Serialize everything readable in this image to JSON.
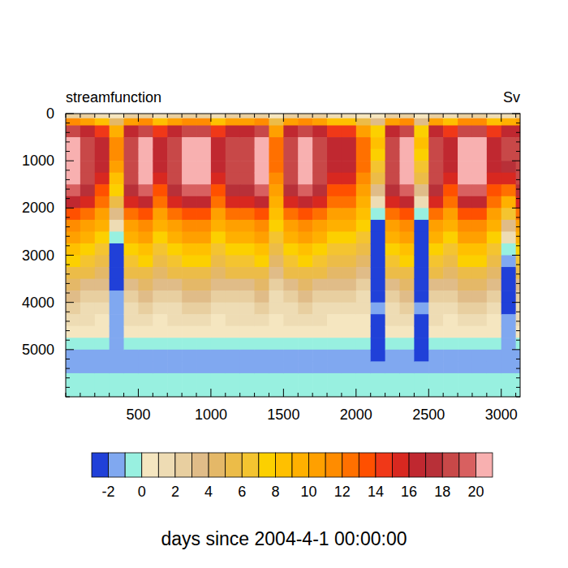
{
  "chart_data": {
    "type": "heatmap",
    "title": "streamfunction",
    "subtitle": "Sv",
    "x_label": "days since 2004-4-1 00:00:00",
    "xlim": [
      0,
      3130
    ],
    "ylim": [
      6000,
      0
    ],
    "xticks": [
      500,
      1000,
      1500,
      2000,
      2500,
      3000
    ],
    "yticks": [
      0,
      1000,
      2000,
      3000,
      4000,
      5000
    ],
    "x_bins": [
      0,
      100,
      200,
      300,
      400,
      500,
      600,
      700,
      800,
      900,
      1000,
      1100,
      1200,
      1300,
      1400,
      1500,
      1600,
      1700,
      1800,
      1900,
      2000,
      2100,
      2200,
      2300,
      2400,
      2500,
      2600,
      2700,
      2800,
      2900,
      3000,
      3100,
      3200
    ],
    "y_bins": [
      0,
      100,
      250,
      500,
      750,
      1000,
      1250,
      1500,
      1750,
      2000,
      2250,
      2500,
      2750,
      3000,
      3250,
      3500,
      3750,
      4000,
      4250,
      4500,
      4750,
      5000,
      5250,
      5500,
      6000
    ],
    "values": [
      [
        2,
        11,
        18,
        20.5,
        21,
        21,
        20.5,
        19,
        16.5,
        13.5,
        11.5,
        10,
        8.5,
        7,
        5.5,
        4.2,
        3.2,
        2.2,
        1.2,
        0.5,
        -0.3,
        -1.2,
        -1.3,
        -0.5
      ],
      [
        2,
        10,
        16,
        18,
        18.5,
        18.5,
        18,
        17,
        15,
        12.5,
        10.5,
        9,
        7.5,
        6.2,
        5,
        3.8,
        2.8,
        1.8,
        1,
        0.4,
        -0.4,
        -1.2,
        -1.3,
        -0.5
      ],
      [
        1,
        8,
        14,
        16,
        16.5,
        16,
        15,
        13.5,
        12,
        10.5,
        9,
        7.5,
        6.5,
        5.5,
        4.5,
        3.5,
        2.5,
        1.5,
        0.8,
        0.3,
        -0.5,
        -1.3,
        -1.4,
        -0.5
      ],
      [
        0.5,
        4,
        9,
        11,
        11,
        10,
        8.5,
        7,
        5,
        3,
        1,
        -1,
        -2.2,
        -2.5,
        -2.5,
        -2.2,
        -2,
        -1.8,
        -1.5,
        -1.2,
        -1.5,
        -1.8,
        -1.6,
        -0.5
      ],
      [
        2,
        10,
        16,
        18,
        18.5,
        18.5,
        18,
        17,
        15,
        12.5,
        10.5,
        9,
        7.5,
        6.2,
        5,
        3.8,
        2.8,
        1.8,
        1,
        0.4,
        -0.4,
        -1.2,
        -1.3,
        -0.5
      ],
      [
        2,
        11,
        18,
        20.5,
        21,
        21,
        20.5,
        19,
        16.5,
        13.5,
        11.5,
        10,
        8.5,
        7,
        5.5,
        4.2,
        3.2,
        2.2,
        1.2,
        0.5,
        -0.3,
        -1.2,
        -1.3,
        -0.5
      ],
      [
        1,
        8,
        14,
        16,
        16.5,
        16,
        15,
        13.5,
        12,
        10.5,
        9,
        7.5,
        6.5,
        5.5,
        4.5,
        3.5,
        2.5,
        1.5,
        0.8,
        0.3,
        -0.5,
        -1.3,
        -1.4,
        -0.5
      ],
      [
        2,
        10,
        16,
        18,
        18.5,
        18.5,
        18,
        17,
        15,
        12.5,
        10.5,
        9,
        7.5,
        6.2,
        5,
        3.8,
        2.8,
        1.8,
        1,
        0.4,
        -0.4,
        -1.2,
        -1.3,
        -0.5
      ],
      [
        2,
        11,
        18,
        20.5,
        21,
        21,
        20.5,
        19,
        16.5,
        13.5,
        11.5,
        10,
        8.5,
        7,
        5.5,
        4.2,
        3.2,
        2.2,
        1.2,
        0.5,
        -0.3,
        -1.2,
        -1.3,
        -0.5
      ],
      [
        2,
        11,
        18,
        20.5,
        21,
        21,
        20.5,
        19,
        16.5,
        13.5,
        11.5,
        10,
        8.5,
        7,
        5.5,
        4.2,
        3.2,
        2.2,
        1.2,
        0.5,
        -0.3,
        -1.2,
        -1.3,
        -0.5
      ],
      [
        1,
        8,
        14,
        16,
        16.5,
        16,
        15,
        13.5,
        12,
        10.5,
        9,
        7.5,
        6.5,
        5.5,
        4.5,
        3.5,
        2.5,
        1.5,
        0.8,
        0.3,
        -0.5,
        -1.3,
        -1.4,
        -0.5
      ],
      [
        2,
        10,
        16,
        18,
        18.5,
        18.5,
        18,
        17,
        15,
        12.5,
        10.5,
        9,
        7.5,
        6.2,
        5,
        3.8,
        2.8,
        1.8,
        1,
        0.4,
        -0.4,
        -1.2,
        -1.3,
        -0.5
      ],
      [
        2,
        10,
        16,
        18,
        18.5,
        18.5,
        18,
        17,
        15,
        12.5,
        10.5,
        9,
        7.5,
        6.2,
        5,
        3.8,
        2.8,
        1.8,
        1,
        0.4,
        -0.4,
        -1.2,
        -1.3,
        -0.5
      ],
      [
        2,
        11,
        18,
        20.5,
        21,
        21,
        20.5,
        19,
        16.5,
        13.5,
        11.5,
        10,
        8.5,
        7,
        5.5,
        4.2,
        3.2,
        2.2,
        1.2,
        0.5,
        -0.3,
        -1.2,
        -1.3,
        -0.5
      ],
      [
        0.5,
        5,
        10,
        12,
        12.5,
        12,
        11,
        10,
        9,
        8,
        7,
        6,
        5,
        4,
        3.2,
        2.5,
        1.8,
        1,
        0.5,
        0,
        -0.8,
        -1.5,
        -1.5,
        -0.5
      ],
      [
        2,
        10,
        16,
        18,
        18.5,
        18.5,
        18,
        17,
        15,
        12.5,
        10.5,
        9,
        7.5,
        6.2,
        5,
        3.8,
        2.8,
        1.8,
        1,
        0.4,
        -0.4,
        -1.2,
        -1.3,
        -0.5
      ],
      [
        2,
        11,
        18,
        20.5,
        21,
        21,
        20.5,
        19,
        16.5,
        13.5,
        11.5,
        10,
        8.5,
        7,
        5.5,
        4.2,
        3.2,
        2.2,
        1.2,
        0.5,
        -0.3,
        -1.2,
        -1.3,
        -0.5
      ],
      [
        2,
        10,
        16,
        18,
        18.5,
        18.5,
        18,
        17,
        15,
        12.5,
        10.5,
        9,
        7.5,
        6.2,
        5,
        3.8,
        2.8,
        1.8,
        1,
        0.4,
        -0.4,
        -1.2,
        -1.3,
        -0.5
      ],
      [
        1,
        8,
        14,
        16,
        16.5,
        16,
        15,
        13.5,
        12,
        10.5,
        9,
        7.5,
        6.5,
        5.5,
        4.5,
        3.5,
        2.5,
        1.5,
        0.8,
        0.3,
        -0.5,
        -1.3,
        -1.4,
        -0.5
      ],
      [
        1,
        8,
        14,
        16,
        16.5,
        16,
        15,
        13.5,
        12,
        10.5,
        9,
        7.5,
        6.5,
        5.5,
        4.5,
        3.5,
        2.5,
        1.5,
        0.8,
        0.3,
        -0.5,
        -1.3,
        -1.4,
        -0.5
      ],
      [
        0.5,
        5,
        10,
        12,
        12.5,
        12,
        11,
        10,
        9,
        8,
        7,
        6,
        5,
        4,
        3.2,
        2.5,
        1.8,
        1,
        0.5,
        0,
        -0.8,
        -1.5,
        -1.5,
        -0.5
      ],
      [
        0,
        3,
        7,
        8,
        7.5,
        6.5,
        5,
        3,
        1,
        -1,
        -2.5,
        -3,
        -3,
        -3,
        -2.8,
        -2.5,
        -2.2,
        -2,
        -2.2,
        -2.5,
        -2.5,
        -2.5,
        -1.8,
        -0.5
      ],
      [
        2,
        10,
        16,
        18,
        18.5,
        18.5,
        18,
        17,
        15,
        12.5,
        10.5,
        9,
        7.5,
        6.2,
        5,
        3.8,
        2.8,
        1.8,
        1,
        0.4,
        -0.4,
        -1.2,
        -1.3,
        -0.5
      ],
      [
        2,
        11,
        18,
        20.5,
        21,
        21,
        20.5,
        19,
        16.5,
        13.5,
        11.5,
        10,
        8.5,
        7,
        5.5,
        4.2,
        3.2,
        2.2,
        1.2,
        0.5,
        -0.3,
        -1.2,
        -1.3,
        -0.5
      ],
      [
        0,
        3,
        7,
        8,
        7.5,
        6.5,
        5,
        3,
        1,
        -1,
        -2.5,
        -3,
        -3,
        -3,
        -2.8,
        -2.5,
        -2.2,
        -2,
        -2.2,
        -2.5,
        -2.5,
        -2.5,
        -1.8,
        -0.5
      ],
      [
        2,
        10,
        16,
        18,
        18.5,
        18.5,
        18,
        17,
        15,
        12.5,
        10.5,
        9,
        7.5,
        6.2,
        5,
        3.8,
        2.8,
        1.8,
        1,
        0.4,
        -0.4,
        -1.2,
        -1.3,
        -0.5
      ],
      [
        1,
        8,
        14,
        16,
        16.5,
        16,
        15,
        13.5,
        12,
        10.5,
        9,
        7.5,
        6.5,
        5.5,
        4.5,
        3.5,
        2.5,
        1.5,
        0.8,
        0.3,
        -0.5,
        -1.3,
        -1.4,
        -0.5
      ],
      [
        2,
        11,
        18,
        20.5,
        21,
        21,
        20.5,
        19,
        16.5,
        13.5,
        11.5,
        10,
        8.5,
        7,
        5.5,
        4.2,
        3.2,
        2.2,
        1.2,
        0.5,
        -0.3,
        -1.2,
        -1.3,
        -0.5
      ],
      [
        2,
        11,
        18,
        20.5,
        21,
        21,
        20.5,
        19,
        16.5,
        13.5,
        11.5,
        10,
        8.5,
        7,
        5.5,
        4.2,
        3.2,
        2.2,
        1.2,
        0.5,
        -0.3,
        -1.2,
        -1.3,
        -0.5
      ],
      [
        1,
        8,
        14,
        16,
        16.5,
        16,
        15,
        13.5,
        12,
        10.5,
        9,
        7.5,
        6.5,
        5.5,
        4.5,
        3.5,
        2.5,
        1.5,
        0.8,
        0.3,
        -0.5,
        -1.3,
        -1.4,
        -0.5
      ],
      [
        1,
        9,
        16,
        18.5,
        18.5,
        17,
        15,
        12,
        9,
        6,
        3,
        1,
        -0.5,
        -1.5,
        -2.2,
        -2.5,
        -2.5,
        -2.2,
        -2,
        -2,
        -2,
        -1.8,
        -1.5,
        -0.5
      ],
      [
        2,
        10,
        16,
        18,
        18.5,
        18.5,
        18,
        17,
        15,
        12.5,
        10.5,
        9,
        7.5,
        6.2,
        5,
        3.8,
        2.8,
        1.8,
        1,
        0.4,
        -0.4,
        -1.2,
        -1.3,
        -0.5
      ]
    ],
    "colors": [
      "#2040d8",
      "#80a8f0",
      "#98f0e0",
      "#f5e6c0",
      "#eedcb4",
      "#e8cfa0",
      "#e0bc88",
      "#e4b868",
      "#ecbc48",
      "#f4c430",
      "#fcd000",
      "#ffc000",
      "#ffb000",
      "#ffa000",
      "#ff8c00",
      "#ff7000",
      "#ff5000",
      "#f03818",
      "#d82820",
      "#c02830",
      "#b83038",
      "#c84848",
      "#d86060",
      "#f8b0b0"
    ],
    "colorbar": {
      "levels": [
        -2,
        -1,
        0,
        1,
        2,
        3,
        4,
        5,
        6,
        7,
        8,
        9,
        10,
        11,
        12,
        13,
        14,
        15,
        16,
        17,
        18,
        19,
        20
      ],
      "ticks": [
        -2,
        0,
        2,
        4,
        6,
        8,
        10,
        12,
        14,
        16,
        18,
        20
      ]
    }
  }
}
